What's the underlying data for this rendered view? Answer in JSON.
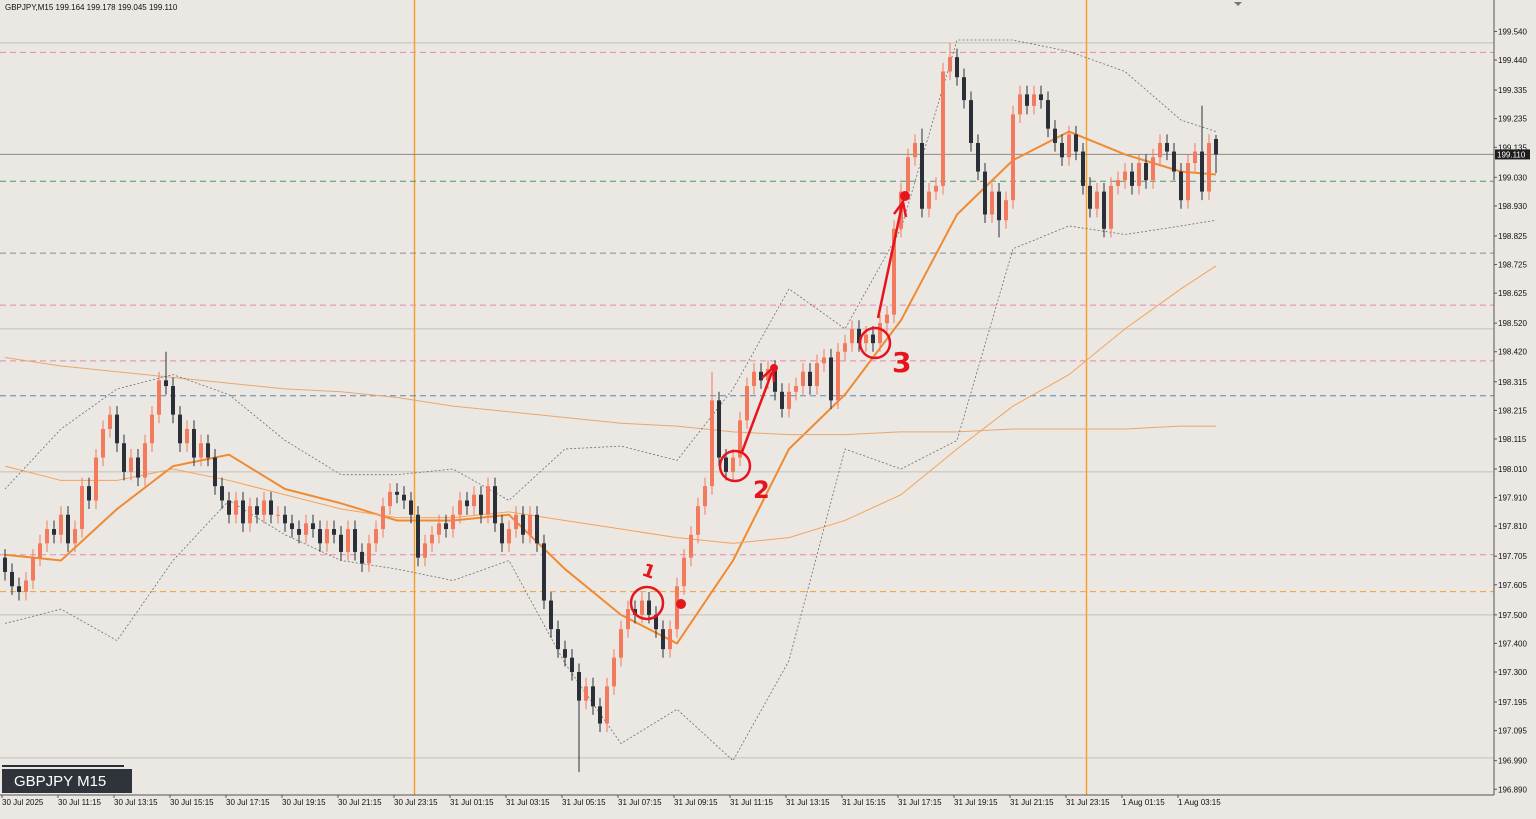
{
  "chart_data": {
    "type": "candlestick",
    "title": "GBPJPY,M15  199.164 199.178 199.045 199.110",
    "symbol_label": "GBPJPY M15",
    "price_label": {
      "value": 199.11,
      "label": "199.110"
    },
    "up_color": "#f47a5e",
    "down_color": "#2b3038",
    "background": "#ebe7e3",
    "ylim": [
      196.87,
      199.65
    ],
    "yticks": [
      {
        "value": 199.54,
        "label": "199.540"
      },
      {
        "value": 199.44,
        "label": "199.440"
      },
      199.335,
      199.235,
      199.135,
      {
        "value": 199.03,
        "label": "199.030"
      },
      {
        "value": 198.93,
        "label": "198.930"
      },
      198.825,
      198.725,
      198.625,
      {
        "value": 198.52,
        "label": "198.520"
      },
      {
        "value": 198.42,
        "label": "198.420"
      },
      198.315,
      198.215,
      198.115,
      {
        "value": 198.01,
        "label": "198.010"
      },
      {
        "value": 197.91,
        "label": "197.910"
      },
      {
        "value": 197.81,
        "label": "197.810"
      },
      197.705,
      197.605,
      {
        "value": 197.5,
        "label": "197.500"
      },
      {
        "value": 197.4,
        "label": "197.400"
      },
      {
        "value": 197.3,
        "label": "197.300"
      },
      197.195,
      197.095,
      {
        "value": 196.99,
        "label": "196.990"
      },
      {
        "value": 196.89,
        "label": "196.890"
      }
    ],
    "categories": [
      "30 Jul 2025",
      null,
      null,
      null,
      null,
      null,
      null,
      null,
      "30 Jul 11:15",
      null,
      null,
      null,
      null,
      null,
      null,
      null,
      "30 Jul 13:15",
      null,
      null,
      null,
      null,
      null,
      null,
      null,
      "30 Jul 15:15",
      null,
      null,
      null,
      null,
      null,
      null,
      null,
      "30 Jul 17:15",
      null,
      null,
      null,
      null,
      null,
      null,
      null,
      "30 Jul 19:15",
      null,
      null,
      null,
      null,
      null,
      null,
      null,
      "30 Jul 21:15",
      null,
      null,
      null,
      null,
      null,
      null,
      null,
      "30 Jul 23:15",
      null,
      null,
      null,
      null,
      null,
      null,
      null,
      "31 Jul 01:15",
      null,
      null,
      null,
      null,
      null,
      null,
      null,
      "31 Jul 03:15",
      null,
      null,
      null,
      null,
      null,
      null,
      null,
      "31 Jul 05:15",
      null,
      null,
      null,
      null,
      null,
      null,
      null,
      "31 Jul 07:15",
      null,
      null,
      null,
      null,
      null,
      null,
      null,
      "31 Jul 09:15",
      null,
      null,
      null,
      null,
      null,
      null,
      null,
      "31 Jul 11:15",
      null,
      null,
      null,
      null,
      null,
      null,
      null,
      "31 Jul 13:15",
      null,
      null,
      null,
      null,
      null,
      null,
      null,
      "31 Jul 15:15",
      null,
      null,
      null,
      null,
      null,
      null,
      null,
      "31 Jul 17:15",
      null,
      null,
      null,
      null,
      null,
      null,
      null,
      "31 Jul 19:15",
      null,
      null,
      null,
      null,
      null,
      null,
      null,
      "31 Jul 21:15",
      null,
      null,
      null,
      null,
      null,
      null,
      null,
      "31 Jul 23:15",
      null,
      null,
      null,
      null,
      null,
      null,
      null,
      "1 Aug 01:15",
      null,
      null,
      null,
      null,
      null,
      null,
      null,
      "1 Aug 03:15",
      null,
      null,
      null,
      null,
      null
    ],
    "open": [
      197.7,
      197.65,
      197.6,
      197.58,
      197.62,
      197.7,
      197.75,
      197.8,
      197.78,
      197.85,
      197.75,
      197.8,
      197.95,
      197.9,
      198.05,
      198.15,
      198.2,
      198.1,
      198.0,
      198.05,
      197.98,
      198.1,
      198.2,
      198.32,
      198.3,
      198.2,
      198.1,
      198.15,
      198.05,
      198.1,
      198.05,
      197.95,
      197.9,
      197.85,
      197.9,
      197.82,
      197.88,
      197.85,
      197.9,
      197.85,
      197.85,
      197.82,
      197.8,
      197.78,
      197.82,
      197.8,
      197.75,
      197.8,
      197.78,
      197.72,
      197.8,
      197.72,
      197.68,
      197.75,
      197.8,
      197.88,
      197.93,
      197.92,
      197.9,
      197.85,
      197.7,
      197.75,
      197.78,
      197.82,
      197.8,
      197.85,
      197.9,
      197.88,
      197.92,
      197.85,
      197.95,
      197.82,
      197.75,
      197.8,
      197.85,
      197.78,
      197.85,
      197.75,
      197.55,
      197.45,
      197.38,
      197.35,
      197.3,
      197.2,
      197.25,
      197.18,
      197.12,
      197.25,
      197.35,
      197.45,
      197.52,
      197.5,
      197.55,
      197.5,
      197.45,
      197.38,
      197.45,
      197.6,
      197.7,
      197.78,
      197.88,
      197.95,
      198.25,
      198.05,
      198.0,
      198.05,
      198.18,
      198.3,
      198.35,
      198.32,
      198.36,
      198.28,
      198.22,
      198.28,
      198.3,
      198.35,
      198.3,
      198.38,
      198.4,
      198.25,
      198.42,
      198.45,
      198.5,
      198.45,
      198.48,
      198.45,
      198.52,
      198.55,
      198.85,
      198.98,
      199.1,
      199.15,
      198.92,
      198.98,
      199.0,
      199.4,
      199.45,
      199.38,
      199.3,
      199.15,
      199.05,
      198.9,
      198.98,
      198.88,
      198.95,
      199.25,
      199.32,
      199.28,
      199.32,
      199.3,
      199.2,
      199.15,
      199.1,
      199.18,
      199.12,
      199.0,
      198.92,
      198.98,
      198.85,
      199.0,
      199.02,
      199.05,
      199.0,
      199.08,
      199.02,
      199.1,
      199.15,
      199.12,
      199.05,
      198.95,
      199.08,
      199.12,
      198.98,
      199.164
    ],
    "high": [
      197.73,
      197.68,
      197.63,
      197.65,
      197.73,
      197.78,
      197.83,
      197.83,
      197.88,
      197.88,
      197.83,
      197.98,
      197.98,
      198.08,
      198.18,
      198.23,
      198.23,
      198.13,
      198.08,
      198.08,
      198.13,
      198.23,
      198.35,
      198.42,
      198.33,
      198.23,
      198.18,
      198.18,
      198.13,
      198.13,
      198.08,
      197.98,
      197.93,
      197.93,
      197.93,
      197.91,
      197.91,
      197.93,
      197.93,
      197.88,
      197.88,
      197.85,
      197.83,
      197.85,
      197.85,
      197.83,
      197.83,
      197.83,
      197.81,
      197.83,
      197.83,
      197.75,
      197.78,
      197.83,
      197.91,
      197.96,
      197.96,
      197.95,
      197.93,
      197.88,
      197.78,
      197.81,
      197.85,
      197.85,
      197.88,
      197.93,
      197.93,
      197.95,
      197.95,
      197.98,
      197.98,
      197.85,
      197.83,
      197.88,
      197.88,
      197.88,
      197.88,
      197.78,
      197.58,
      197.48,
      197.41,
      197.38,
      197.33,
      197.28,
      197.28,
      197.21,
      197.28,
      197.38,
      197.48,
      197.55,
      197.55,
      197.58,
      197.58,
      197.53,
      197.48,
      197.48,
      197.63,
      197.73,
      197.81,
      197.91,
      197.98,
      198.35,
      198.28,
      198.08,
      198.08,
      198.21,
      198.33,
      198.38,
      198.38,
      198.39,
      198.39,
      198.31,
      198.31,
      198.33,
      198.38,
      198.38,
      198.41,
      198.43,
      198.43,
      198.45,
      198.48,
      198.53,
      198.53,
      198.51,
      198.51,
      198.55,
      198.58,
      198.88,
      199.01,
      199.13,
      199.18,
      199.2,
      199.01,
      199.03,
      199.43,
      199.5,
      199.48,
      199.41,
      199.33,
      199.18,
      199.08,
      199.01,
      199.01,
      198.98,
      199.28,
      199.35,
      199.35,
      199.35,
      199.35,
      199.33,
      199.23,
      199.18,
      199.21,
      199.21,
      199.15,
      199.03,
      199.01,
      199.01,
      199.03,
      199.05,
      199.08,
      199.08,
      199.11,
      199.11,
      199.13,
      199.18,
      199.18,
      199.15,
      199.08,
      199.11,
      199.15,
      199.28,
      199.18,
      199.178
    ],
    "low": [
      197.62,
      197.57,
      197.55,
      197.55,
      197.59,
      197.67,
      197.72,
      197.75,
      197.75,
      197.72,
      197.72,
      197.77,
      197.87,
      197.87,
      198.02,
      198.12,
      198.07,
      197.97,
      197.97,
      197.95,
      197.95,
      198.07,
      198.17,
      198.27,
      198.17,
      198.07,
      198.07,
      198.02,
      198.02,
      198.02,
      197.92,
      197.87,
      197.82,
      197.82,
      197.79,
      197.79,
      197.82,
      197.82,
      197.82,
      197.82,
      197.79,
      197.77,
      197.75,
      197.75,
      197.77,
      197.72,
      197.72,
      197.75,
      197.69,
      197.69,
      197.69,
      197.65,
      197.65,
      197.72,
      197.77,
      197.85,
      197.89,
      197.87,
      197.82,
      197.67,
      197.67,
      197.72,
      197.75,
      197.77,
      197.77,
      197.82,
      197.85,
      197.85,
      197.82,
      197.82,
      197.79,
      197.72,
      197.72,
      197.77,
      197.75,
      197.75,
      197.72,
      197.52,
      197.42,
      197.35,
      197.32,
      197.27,
      196.95,
      197.17,
      197.15,
      197.09,
      197.09,
      197.22,
      197.32,
      197.42,
      197.47,
      197.47,
      197.47,
      197.42,
      197.35,
      197.35,
      197.42,
      197.57,
      197.67,
      197.75,
      197.85,
      197.92,
      198.02,
      197.97,
      197.97,
      198.02,
      198.15,
      198.27,
      198.29,
      198.29,
      198.25,
      198.19,
      198.19,
      198.25,
      198.27,
      198.27,
      198.27,
      198.35,
      198.22,
      198.22,
      198.39,
      198.42,
      198.42,
      198.42,
      198.42,
      198.42,
      198.49,
      198.52,
      198.82,
      198.95,
      199.07,
      198.89,
      198.89,
      198.95,
      198.97,
      199.37,
      199.35,
      199.27,
      199.12,
      199.02,
      198.87,
      198.87,
      198.82,
      198.85,
      198.92,
      199.22,
      199.25,
      199.25,
      199.27,
      199.17,
      199.12,
      199.07,
      199.07,
      199.09,
      198.97,
      198.89,
      198.89,
      198.82,
      198.82,
      198.97,
      198.99,
      198.97,
      198.97,
      198.99,
      198.99,
      199.07,
      199.09,
      199.02,
      198.92,
      198.92,
      199.05,
      198.95,
      198.95,
      199.045
    ],
    "close": [
      197.65,
      197.6,
      197.58,
      197.62,
      197.7,
      197.75,
      197.8,
      197.78,
      197.85,
      197.75,
      197.8,
      197.95,
      197.9,
      198.05,
      198.15,
      198.2,
      198.1,
      198.0,
      198.05,
      197.98,
      198.1,
      198.2,
      198.32,
      198.3,
      198.2,
      198.1,
      198.15,
      198.05,
      198.1,
      198.05,
      197.95,
      197.9,
      197.85,
      197.9,
      197.82,
      197.88,
      197.85,
      197.9,
      197.85,
      197.85,
      197.82,
      197.8,
      197.78,
      197.82,
      197.8,
      197.75,
      197.8,
      197.78,
      197.72,
      197.8,
      197.72,
      197.68,
      197.75,
      197.8,
      197.88,
      197.93,
      197.92,
      197.9,
      197.85,
      197.7,
      197.75,
      197.78,
      197.82,
      197.8,
      197.85,
      197.9,
      197.88,
      197.92,
      197.85,
      197.95,
      197.82,
      197.75,
      197.8,
      197.85,
      197.78,
      197.85,
      197.75,
      197.55,
      197.45,
      197.38,
      197.35,
      197.3,
      197.2,
      197.25,
      197.18,
      197.12,
      197.25,
      197.35,
      197.45,
      197.52,
      197.5,
      197.55,
      197.5,
      197.45,
      197.38,
      197.45,
      197.6,
      197.7,
      197.78,
      197.88,
      197.95,
      198.25,
      198.05,
      198.0,
      198.05,
      198.18,
      198.3,
      198.35,
      198.32,
      198.36,
      198.28,
      198.22,
      198.28,
      198.3,
      198.35,
      198.3,
      198.38,
      198.4,
      198.25,
      198.42,
      198.45,
      198.5,
      198.45,
      198.48,
      198.45,
      198.52,
      198.55,
      198.85,
      198.98,
      199.1,
      199.15,
      198.92,
      198.98,
      199.0,
      199.4,
      199.45,
      199.38,
      199.3,
      199.15,
      199.05,
      198.9,
      198.98,
      198.88,
      198.95,
      199.25,
      199.32,
      199.28,
      199.32,
      199.3,
      199.2,
      199.15,
      199.1,
      199.18,
      199.12,
      199.0,
      198.92,
      198.98,
      198.85,
      199.0,
      199.02,
      199.05,
      199.0,
      199.08,
      199.02,
      199.1,
      199.15,
      199.12,
      199.05,
      198.95,
      199.08,
      199.12,
      198.98,
      199.15,
      199.11
    ],
    "levels": [
      {
        "value": 199.467,
        "color": "#e889a8"
      },
      {
        "value": 199.016,
        "color": "#4f9a62"
      },
      {
        "value": 198.765,
        "color": "#8c8c8c"
      },
      {
        "value": 198.583,
        "color": "#e889a8"
      },
      {
        "value": 198.388,
        "color": "#e889a8"
      },
      {
        "value": 198.266,
        "color": "#5b86b0"
      },
      {
        "value": 197.71,
        "color": "#e889a8"
      },
      {
        "value": 197.581,
        "color": "#f2a23a"
      }
    ],
    "round_levels": [
      199.5,
      198.5,
      198.0,
      197.5,
      197.0
    ],
    "vlines": [
      59,
      155
    ],
    "vline_color": "#f5a030",
    "indicators": [
      {
        "color": "#f08a30",
        "width": 2,
        "dash": "none",
        "x": [
          0,
          8,
          16,
          24,
          32,
          40,
          48,
          56,
          64,
          72,
          80,
          88,
          96,
          104,
          112,
          120,
          128,
          136,
          144,
          152,
          160,
          168,
          173
        ],
        "values": [
          197.71,
          197.69,
          197.87,
          198.02,
          198.06,
          197.94,
          197.89,
          197.83,
          197.83,
          197.85,
          197.66,
          197.5,
          197.4,
          197.69,
          198.08,
          198.27,
          198.53,
          198.9,
          199.09,
          199.19,
          199.11,
          199.05,
          199.04
        ]
      },
      {
        "color": "#f5a356",
        "width": 1,
        "dash": "none",
        "x": [
          0,
          8,
          16,
          24,
          32,
          40,
          48,
          56,
          64,
          72,
          80,
          88,
          96,
          104,
          112,
          120,
          128,
          136,
          144,
          152,
          160,
          168,
          173
        ],
        "values": [
          198.02,
          197.97,
          197.97,
          198.01,
          197.97,
          197.92,
          197.87,
          197.84,
          197.84,
          197.86,
          197.83,
          197.8,
          197.77,
          197.75,
          197.77,
          197.83,
          197.92,
          198.08,
          198.23,
          198.34,
          198.5,
          198.64,
          198.72
        ]
      },
      {
        "color": "#e9a770",
        "width": 1,
        "dash": "none",
        "x": [
          0,
          8,
          16,
          24,
          32,
          40,
          48,
          56,
          64,
          72,
          80,
          88,
          96,
          104,
          112,
          120,
          128,
          136,
          144,
          152,
          160,
          168,
          173
        ],
        "values": [
          198.4,
          198.37,
          198.35,
          198.33,
          198.31,
          198.29,
          198.28,
          198.26,
          198.23,
          198.21,
          198.19,
          198.17,
          198.16,
          198.14,
          198.13,
          198.13,
          198.14,
          198.14,
          198.15,
          198.15,
          198.15,
          198.16,
          198.16
        ]
      },
      {
        "color": "#6e6e6e",
        "width": 0.8,
        "dash": "2,2",
        "x": [
          0,
          8,
          16,
          24,
          32,
          40,
          48,
          56,
          64,
          72,
          80,
          88,
          96,
          104,
          112,
          120,
          128,
          136,
          144,
          152,
          160,
          168,
          173
        ],
        "values": [
          197.94,
          198.15,
          198.29,
          198.34,
          198.27,
          198.11,
          197.99,
          197.99,
          198.01,
          197.9,
          198.08,
          198.09,
          198.04,
          198.29,
          198.64,
          198.5,
          198.85,
          199.51,
          199.51,
          199.47,
          199.4,
          199.23,
          199.19
        ]
      },
      {
        "color": "#6e6e6e",
        "width": 0.8,
        "dash": "2,2",
        "x": [
          0,
          8,
          16,
          24,
          32,
          40,
          48,
          56,
          64,
          72,
          80,
          88,
          96,
          104,
          112,
          120,
          128,
          136,
          144,
          152,
          160,
          168,
          173
        ],
        "values": [
          197.47,
          197.52,
          197.41,
          197.69,
          197.9,
          197.78,
          197.69,
          197.66,
          197.62,
          197.69,
          197.33,
          197.05,
          197.17,
          196.99,
          197.34,
          198.08,
          198.01,
          198.11,
          198.78,
          198.86,
          198.83,
          198.86,
          198.88
        ]
      }
    ],
    "annotations": [
      "1",
      "2",
      "3"
    ]
  }
}
